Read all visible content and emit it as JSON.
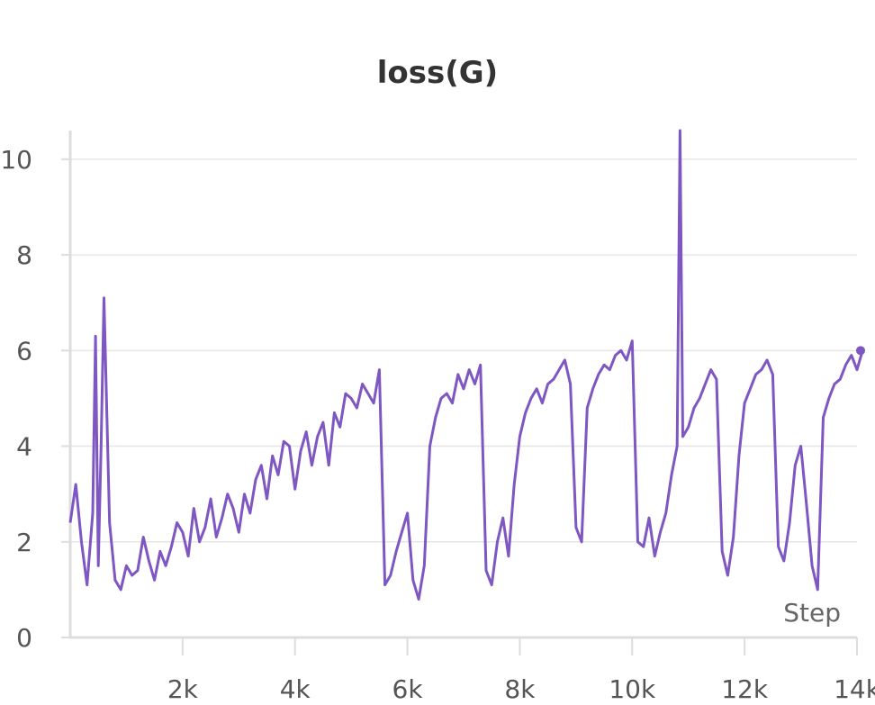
{
  "chart_data": {
    "type": "line",
    "title": "loss(G)",
    "xlabel": "Step",
    "ylabel": "",
    "xlim": [
      0,
      14000
    ],
    "ylim": [
      0,
      10.6
    ],
    "x_ticks": [
      2000,
      4000,
      6000,
      8000,
      10000,
      12000,
      14000
    ],
    "x_tick_labels": [
      "2k",
      "4k",
      "6k",
      "8k",
      "10k",
      "12k",
      "14k"
    ],
    "y_ticks": [
      0,
      2,
      4,
      6,
      8,
      10
    ],
    "y_tick_labels": [
      "0",
      "2",
      "4",
      "6",
      "8",
      "10"
    ],
    "grid": true,
    "series": [
      {
        "color": "#7e57c2",
        "x": [
          0,
          100,
          200,
          300,
          400,
          450,
          500,
          550,
          600,
          700,
          800,
          900,
          1000,
          1100,
          1200,
          1300,
          1400,
          1500,
          1600,
          1700,
          1800,
          1900,
          2000,
          2100,
          2200,
          2300,
          2400,
          2500,
          2600,
          2700,
          2800,
          2900,
          3000,
          3100,
          3200,
          3300,
          3400,
          3500,
          3600,
          3700,
          3800,
          3900,
          4000,
          4100,
          4200,
          4300,
          4400,
          4500,
          4600,
          4700,
          4800,
          4900,
          5000,
          5100,
          5200,
          5300,
          5400,
          5500,
          5600,
          5700,
          5800,
          5900,
          6000,
          6100,
          6200,
          6300,
          6400,
          6500,
          6600,
          6700,
          6800,
          6900,
          7000,
          7100,
          7200,
          7300,
          7400,
          7500,
          7600,
          7700,
          7800,
          7900,
          8000,
          8100,
          8200,
          8300,
          8400,
          8500,
          8600,
          8700,
          8800,
          8900,
          9000,
          9100,
          9200,
          9300,
          9400,
          9500,
          9600,
          9700,
          9800,
          9900,
          10000,
          10100,
          10200,
          10300,
          10400,
          10500,
          10600,
          10700,
          10800,
          10850,
          10900,
          11000,
          11100,
          11200,
          11300,
          11400,
          11500,
          11600,
          11700,
          11800,
          11900,
          12000,
          12100,
          12200,
          12300,
          12400,
          12500,
          12600,
          12700,
          12800,
          12900,
          13000,
          13100,
          13200,
          13300,
          13400,
          13500,
          13600,
          13700,
          13800,
          13900,
          14000,
          14100
        ],
        "y": [
          2.4,
          3.2,
          2.0,
          1.1,
          2.6,
          6.3,
          1.5,
          4.0,
          7.1,
          2.4,
          1.2,
          1.0,
          1.5,
          1.3,
          1.4,
          2.1,
          1.6,
          1.2,
          1.8,
          1.5,
          1.9,
          2.4,
          2.2,
          1.7,
          2.7,
          2.0,
          2.3,
          2.9,
          2.1,
          2.5,
          3.0,
          2.7,
          2.2,
          3.0,
          2.6,
          3.3,
          3.6,
          2.9,
          3.8,
          3.4,
          4.1,
          4.0,
          3.1,
          3.9,
          4.3,
          3.6,
          4.2,
          4.5,
          3.6,
          4.7,
          4.4,
          5.1,
          5.0,
          4.8,
          5.3,
          5.1,
          4.9,
          5.6,
          1.1,
          1.3,
          1.8,
          2.2,
          2.6,
          1.2,
          0.8,
          1.5,
          4.0,
          4.6,
          5.0,
          5.1,
          4.9,
          5.5,
          5.2,
          5.6,
          5.3,
          5.7,
          1.4,
          1.1,
          2.0,
          2.5,
          1.7,
          3.2,
          4.2,
          4.7,
          5.0,
          5.2,
          4.9,
          5.3,
          5.4,
          5.6,
          5.8,
          5.3,
          2.3,
          2.0,
          4.8,
          5.2,
          5.5,
          5.7,
          5.6,
          5.9,
          6.0,
          5.8,
          6.2,
          2.0,
          1.9,
          2.5,
          1.7,
          2.2,
          2.6,
          3.4,
          4.0,
          10.6,
          4.2,
          4.4,
          4.8,
          5.0,
          5.3,
          5.6,
          5.4,
          1.8,
          1.3,
          2.1,
          3.8,
          4.9,
          5.2,
          5.5,
          5.6,
          5.8,
          5.5,
          1.9,
          1.6,
          2.4,
          3.6,
          4.0,
          2.8,
          1.5,
          1.0,
          4.6,
          5.0,
          5.3,
          5.4,
          5.7,
          5.9,
          5.6,
          6.0
        ]
      }
    ]
  }
}
